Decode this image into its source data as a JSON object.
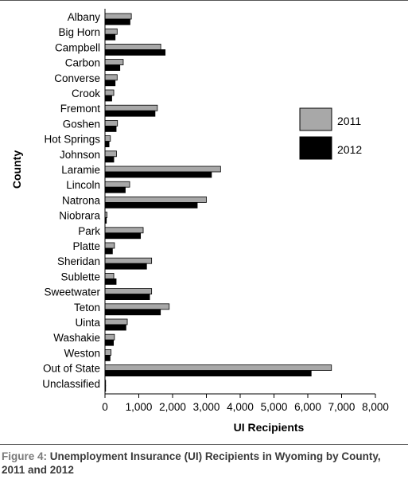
{
  "chart_data": {
    "type": "bar",
    "orientation": "horizontal",
    "ylabel": "County",
    "xlabel": "UI Recipients",
    "xlim": [
      0,
      8000
    ],
    "x_ticks": [
      "0",
      "1,000",
      "2,000",
      "3,000",
      "4,000",
      "5,000",
      "6,000",
      "7,000",
      "8,000"
    ],
    "grid": false,
    "legend_position": "right",
    "categories": [
      "Albany",
      "Big Horn",
      "Campbell",
      "Carbon",
      "Converse",
      "Crook",
      "Fremont",
      "Goshen",
      "Hot Springs",
      "Johnson",
      "Laramie",
      "Lincoln",
      "Natrona",
      "Niobrara",
      "Park",
      "Platte",
      "Sheridan",
      "Sublette",
      "Sweetwater",
      "Teton",
      "Uinta",
      "Washakie",
      "Weston",
      "Out of State",
      "Unclassified"
    ],
    "series": [
      {
        "name": "2011",
        "color": "#a8a8a8",
        "values": [
          780,
          360,
          1650,
          540,
          360,
          260,
          1550,
          370,
          160,
          340,
          3420,
          730,
          3000,
          60,
          1130,
          280,
          1380,
          260,
          1380,
          1900,
          660,
          280,
          180,
          6700,
          5
        ]
      },
      {
        "name": "2012",
        "color": "#000000",
        "values": [
          740,
          300,
          1780,
          440,
          300,
          200,
          1480,
          330,
          120,
          260,
          3150,
          600,
          2730,
          40,
          1050,
          220,
          1230,
          330,
          1320,
          1640,
          620,
          250,
          150,
          6100,
          5
        ]
      }
    ]
  },
  "caption": {
    "label": "Figure 4:",
    "text": "Unemployment Insurance (UI) Recipients in Wyoming  by County, 2011 and 2012"
  }
}
